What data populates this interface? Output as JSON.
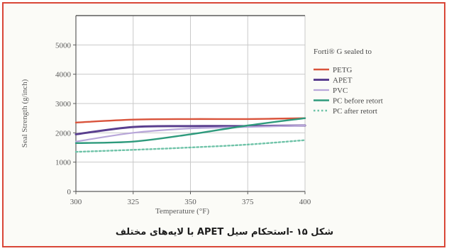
{
  "caption": "شکل ۱۵ -استحکام سیل APET با لایه‌های مختلف",
  "colors": {
    "frame_border": "#d94637",
    "grid": "#c9c9c9",
    "axis_box": "#5c5c5c"
  },
  "chart_data": {
    "type": "line",
    "ylabel": "Seal Strength (g/inch)",
    "xlabel": "Temperature (°F)",
    "xlim": [
      300,
      400
    ],
    "ylim": [
      0,
      6000
    ],
    "x_ticks": [
      300,
      325,
      350,
      375,
      400
    ],
    "x_tick_labels": [
      "300",
      "325",
      "350",
      "375",
      "400"
    ],
    "y_ticks": [
      0,
      1000,
      2000,
      3000,
      4000,
      5000
    ],
    "y_tick_labels": [
      "0",
      "1000",
      "2000",
      "3000",
      "4000",
      "5000"
    ],
    "grid": true,
    "legend_title": "Forti® G sealed to",
    "legend_position": "right",
    "x": [
      300,
      325,
      350,
      375,
      400
    ],
    "series": [
      {
        "name": "PETG",
        "color": "#d9533b",
        "dashed": false,
        "width": 2.4,
        "values": [
          2350,
          2450,
          2470,
          2470,
          2500
        ]
      },
      {
        "name": "APET",
        "color": "#5a3f8f",
        "dashed": false,
        "width": 3,
        "values": [
          1950,
          2200,
          2230,
          2230,
          2250
        ]
      },
      {
        "name": "PVC",
        "color": "#b8a6d9",
        "dashed": false,
        "width": 2.2,
        "values": [
          1700,
          2000,
          2150,
          2200,
          2250
        ]
      },
      {
        "name": "PC before retort",
        "color": "#2e9a7c",
        "dashed": false,
        "width": 2.4,
        "values": [
          1650,
          1700,
          1950,
          2250,
          2500
        ]
      },
      {
        "name": "PC after retort",
        "color": "#6fc3a8",
        "dashed": true,
        "width": 2.4,
        "values": [
          1350,
          1420,
          1500,
          1600,
          1750
        ]
      }
    ]
  }
}
